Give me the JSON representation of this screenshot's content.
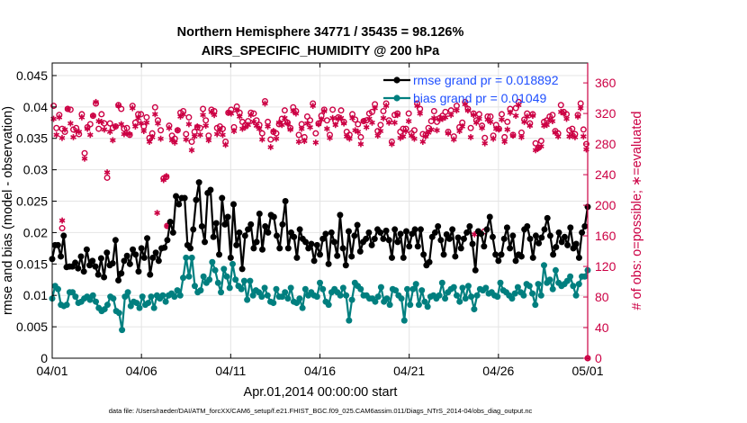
{
  "chart_data": {
    "type": "line",
    "title": "Northern Hemisphere 34771 / 35435 = 98.126%",
    "subtitle": "AIRS_SPECIFIC_HUMIDITY @ 200 hPa",
    "xlabel": "Apr.01,2014 00:00:00 start",
    "ylabel": "rmse and bias (model - observation)",
    "y2label": "# of obs: o=possible; ∗=evaluated",
    "footer": "data file: /Users/raeder/DAI/ATM_forcXX/CAM6_setup/f.e21.FHIST_BGC.f09_025.CAM6assim.011/Diags_NTrS_2014-04/obs_diag_output.nc",
    "x_range": [
      0,
      30
    ],
    "ylim": [
      0,
      0.047
    ],
    "y2lim": [
      0,
      386
    ],
    "x_ticks": [
      0,
      5,
      10,
      15,
      20,
      25,
      30
    ],
    "x_tick_labels": [
      "04/01",
      "04/06",
      "04/11",
      "04/16",
      "04/21",
      "04/26",
      "05/01"
    ],
    "y_ticks": [
      0,
      0.005,
      0.01,
      0.015,
      0.02,
      0.025,
      0.03,
      0.035,
      0.04,
      0.045
    ],
    "y_tick_labels": [
      "0",
      "0.005",
      "0.01",
      "0.015",
      "0.02",
      "0.025",
      "0.03",
      "0.035",
      "0.04",
      "0.045"
    ],
    "y2_ticks": [
      0,
      40,
      80,
      120,
      160,
      200,
      240,
      280,
      320,
      360
    ],
    "y2_tick_labels": [
      "0",
      "40",
      "80",
      "120",
      "160",
      "200",
      "240",
      "280",
      "320",
      "360"
    ],
    "grid": true,
    "legend_position": "top-right",
    "colors": {
      "rmse": "#000000",
      "bias": "#007f7f",
      "obs": "#cc0044",
      "legend_text": "#1f4fff"
    },
    "series": [
      {
        "name": "rmse grand pr = 0.018892",
        "axis": "left",
        "values": [
          0.0158,
          0.018,
          0.018,
          0.0162,
          0.0195,
          0.0145,
          0.0146,
          0.0146,
          0.0152,
          0.0143,
          0.0162,
          0.0138,
          0.0173,
          0.0148,
          0.0155,
          0.0146,
          0.0133,
          0.0159,
          0.0129,
          0.0168,
          0.0148,
          0.0151,
          0.0188,
          0.0124,
          0.0135,
          0.0155,
          0.0163,
          0.015,
          0.0173,
          0.0165,
          0.0138,
          0.0175,
          0.016,
          0.0191,
          0.0133,
          0.016,
          0.0168,
          0.0155,
          0.0175,
          0.0176,
          0.0188,
          0.0217,
          0.02,
          0.0258,
          0.0245,
          0.0255,
          0.0255,
          0.018,
          0.0175,
          0.0205,
          0.0252,
          0.028,
          0.021,
          0.0185,
          0.0263,
          0.0268,
          0.0193,
          0.0215,
          0.0165,
          0.0255,
          0.0213,
          0.0225,
          0.016,
          0.0245,
          0.018,
          0.02,
          0.0142,
          0.0195,
          0.0205,
          0.0213,
          0.0175,
          0.0185,
          0.023,
          0.0173,
          0.021,
          0.02,
          0.0228,
          0.0225,
          0.0195,
          0.0175,
          0.0213,
          0.025,
          0.0175,
          0.02,
          0.0193,
          0.016,
          0.0205,
          0.019,
          0.0185,
          0.0175,
          0.0182,
          0.0155,
          0.018,
          0.0165,
          0.019,
          0.0198,
          0.015,
          0.02,
          0.0185,
          0.0163,
          0.0228,
          0.0175,
          0.0148,
          0.0202,
          0.0162,
          0.0195,
          0.0212,
          0.017,
          0.0185,
          0.019,
          0.02,
          0.018,
          0.019,
          0.0205,
          0.02,
          0.019,
          0.0203,
          0.0188,
          0.016,
          0.0205,
          0.0185,
          0.0198,
          0.016,
          0.0202,
          0.0178,
          0.0198,
          0.0205,
          0.0178,
          0.0205,
          0.0165,
          0.0148,
          0.0153,
          0.0193,
          0.02,
          0.021,
          0.0188,
          0.0165,
          0.0197,
          0.019,
          0.0205,
          0.0162,
          0.0192,
          0.0175,
          0.019,
          0.02,
          0.021,
          0.0182,
          0.014,
          0.0202,
          0.0198,
          0.0178,
          0.0205,
          0.0225,
          0.0193,
          0.0165,
          0.0155,
          0.0165,
          0.019,
          0.0208,
          0.0175,
          0.0195,
          0.0155,
          0.0165,
          0.0162,
          0.0205,
          0.021,
          0.019,
          0.016,
          0.0195,
          0.0183,
          0.0192,
          0.0205,
          0.0223,
          0.0195,
          0.0165,
          0.0177,
          0.02,
          0.0185,
          0.0193,
          0.018,
          0.0208,
          0.0175,
          0.0182,
          0.016,
          0.02,
          0.021,
          0.0241
        ]
      },
      {
        "name": "bias grand pr = 0.01049",
        "axis": "left",
        "values": [
          0.0095,
          0.0115,
          0.011,
          0.0085,
          0.0083,
          0.0085,
          0.0105,
          0.0105,
          0.0098,
          0.0088,
          0.009,
          0.0095,
          0.0098,
          0.0093,
          0.01,
          0.009,
          0.008,
          0.0075,
          0.0078,
          0.0085,
          0.0098,
          0.0095,
          0.0075,
          0.0072,
          0.0045,
          0.0098,
          0.0105,
          0.0083,
          0.009,
          0.0088,
          0.008,
          0.0098,
          0.0085,
          0.0088,
          0.0098,
          0.008,
          0.01,
          0.0095,
          0.01,
          0.009,
          0.01,
          0.0103,
          0.0098,
          0.0108,
          0.01,
          0.0128,
          0.016,
          0.013,
          0.016,
          0.0115,
          0.0105,
          0.0108,
          0.013,
          0.012,
          0.0125,
          0.0153,
          0.014,
          0.012,
          0.0105,
          0.0142,
          0.013,
          0.0112,
          0.015,
          0.0125,
          0.0115,
          0.011,
          0.0123,
          0.0093,
          0.0123,
          0.01,
          0.0108,
          0.0105,
          0.0098,
          0.0112,
          0.01,
          0.009,
          0.0088,
          0.011,
          0.0098,
          0.0098,
          0.0105,
          0.0095,
          0.0112,
          0.009,
          0.0088,
          0.0095,
          0.008,
          0.011,
          0.01,
          0.0105,
          0.01,
          0.0098,
          0.012,
          0.011,
          0.009,
          0.0085,
          0.0105,
          0.011,
          0.0105,
          0.01,
          0.0112,
          0.01,
          0.006,
          0.0093,
          0.012,
          0.0115,
          0.011,
          0.01,
          0.01,
          0.0095,
          0.0095,
          0.009,
          0.0098,
          0.0113,
          0.009,
          0.0095,
          0.0085,
          0.011,
          0.0108,
          0.01,
          0.0095,
          0.006,
          0.011,
          0.0085,
          0.011,
          0.0118,
          0.0085,
          0.0108,
          0.009,
          0.0082,
          0.0098,
          0.01,
          0.0095,
          0.01,
          0.012,
          0.0095,
          0.0105,
          0.011,
          0.0113,
          0.01,
          0.009,
          0.0112,
          0.0095,
          0.0115,
          0.0098,
          0.0078,
          0.01,
          0.011,
          0.0108,
          0.0112,
          0.0103,
          0.0105,
          0.01,
          0.0098,
          0.012,
          0.0108,
          0.0105,
          0.01,
          0.0095,
          0.0103,
          0.0113,
          0.0105,
          0.01,
          0.0118,
          0.0115,
          0.0103,
          0.0085,
          0.0118,
          0.01,
          0.0148,
          0.012,
          0.0125,
          0.011,
          0.014,
          0.012,
          0.0115,
          0.0118,
          0.0123,
          0.013,
          0.0115,
          0.01,
          0.0118,
          0.013,
          0.013,
          0.014
        ]
      },
      {
        "name": "# of obs possible (o)",
        "axis": "right",
        "values": [
          330,
          301,
          318,
          300,
          296,
          326,
          325,
          299,
          301,
          293,
          319,
          268,
          302,
          306,
          317,
          333,
          300,
          319,
          307,
          236,
          307,
          301,
          303,
          331,
          326,
          300,
          301,
          292,
          330,
          308,
          319,
          319,
          303,
          315,
          288,
          294,
          328,
          311,
          298,
          235,
          237,
          304,
          291,
          287,
          298,
          321,
          323,
          293,
          315,
          283,
          296,
          302,
          301,
          326,
          311,
          291,
          325,
          323,
          301,
          303,
          300,
          283,
          321,
          325,
          302,
          329,
          321,
          309,
          305,
          310,
          321,
          320,
          311,
          305,
          294,
          336,
          309,
          286,
          296,
          294,
          306,
          313,
          324,
          308,
          301,
          328,
          323,
          292,
          306,
          289,
          316,
          311,
          333,
          294,
          307,
          317,
          325,
          311,
          292,
          325,
          310,
          315,
          324,
          309,
          296,
          292,
          319,
          312,
          306,
          289,
          310,
          311,
          320,
          322,
          332,
          297,
          305,
          323,
          333,
          311,
          283,
          318,
          320,
          296,
          300,
          300,
          320,
          294,
          298,
          333,
          326,
          293,
          292,
          301,
          310,
          323,
          309,
          314,
          317,
          322,
          296,
          324,
          290,
          330,
          302,
          308,
          335,
          326,
          301,
          320,
          311,
          319,
          304,
          288,
          316,
          316,
          291,
          305,
          300,
          319,
          289,
          309,
          326,
          292,
          327,
          335,
          295,
          312,
          320,
          307,
          319,
          281,
          275,
          284,
          309,
          311,
          316,
          318,
          297,
          294,
          331,
          322,
          319,
          298,
          300,
          293,
          318,
          333,
          299,
          280
        ]
      },
      {
        "name": "# of obs evaluated (*)",
        "axis": "right",
        "values": [
          313,
          292,
          315,
          288,
          299,
          326,
          307,
          289,
          297,
          296,
          315,
          261,
          300,
          292,
          317,
          335,
          310,
          309,
          299,
          243,
          296,
          285,
          303,
          330,
          306,
          293,
          294,
          293,
          327,
          303,
          314,
          307,
          297,
          308,
          283,
          289,
          319,
          307,
          287,
          233,
          238,
          301,
          285,
          282,
          298,
          316,
          319,
          286,
          306,
          272,
          290,
          303,
          292,
          318,
          304,
          285,
          322,
          318,
          293,
          298,
          292,
          279,
          321,
          320,
          297,
          324,
          316,
          300,
          302,
          305,
          318,
          309,
          304,
          300,
          286,
          333,
          303,
          276,
          297,
          287,
          308,
          305,
          314,
          307,
          299,
          323,
          320,
          283,
          300,
          284,
          307,
          302,
          330,
          282,
          306,
          312,
          323,
          300,
          288,
          314,
          305,
          313,
          314,
          307,
          290,
          287,
          314,
          298,
          296,
          280,
          310,
          302,
          313,
          308,
          327,
          291,
          297,
          314,
          330,
          308,
          280,
          308,
          318,
          288,
          290,
          297,
          310,
          291,
          287,
          330,
          320,
          283,
          290,
          295,
          299,
          314,
          298,
          312,
          313,
          315,
          294,
          318,
          286,
          324,
          297,
          303,
          332,
          324,
          289,
          318,
          308,
          313,
          301,
          281,
          312,
          309,
          287,
          300,
          299,
          312,
          283,
          299,
          321,
          291,
          317,
          331,
          289,
          309,
          316,
          304,
          317,
          272,
          275,
          277,
          304,
          305,
          312,
          310,
          295,
          290,
          322,
          320,
          313,
          290,
          292,
          289,
          316,
          327,
          290,
          273
        ]
      }
    ],
    "outlier_points": [
      {
        "series": "# of obs evaluated (*)",
        "x": 0.56,
        "value": 180
      },
      {
        "series": "# of obs possible (o)",
        "x": 0.56,
        "value": 170
      },
      {
        "series": "# of obs evaluated (*)",
        "x": 5.88,
        "value": 190
      },
      {
        "series": "# of obs possible (o)",
        "x": 6.44,
        "value": 173
      },
      {
        "series": "# of obs evaluated (*)",
        "x": 6.44,
        "value": 173
      },
      {
        "series": "# of obs evaluated (*)",
        "x": 23.66,
        "value": 162
      },
      {
        "series": "# of obs possible (o)",
        "x": 24.22,
        "value": 166
      },
      {
        "series": "# of obs evaluated (*)",
        "x": 30,
        "value": 0
      },
      {
        "series": "# of obs possible (o)",
        "x": 30,
        "value": 0
      }
    ]
  }
}
